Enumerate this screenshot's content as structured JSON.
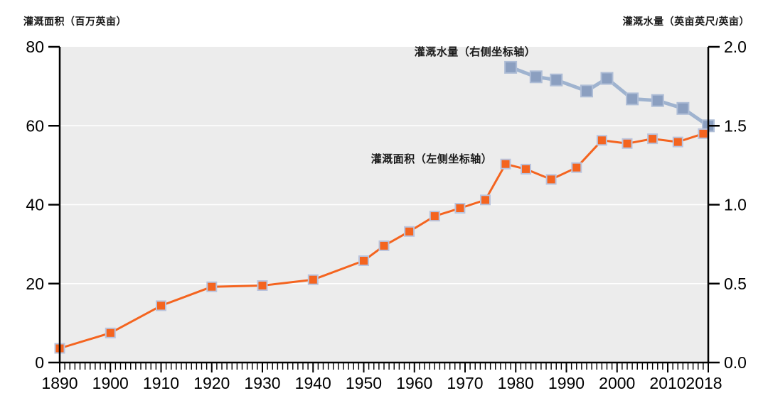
{
  "chart_data": {
    "type": "line",
    "axis_titles": {
      "left": "灌溉面积（百万英亩）",
      "right": "灌溉水量（英亩英尺/英亩）"
    },
    "colors": {
      "background": "#FFFFFF",
      "plot_background": "#ECECEC",
      "gridline": "#FFFFFF",
      "axis": "#000000"
    },
    "x_axis": {
      "min": 1890,
      "max": 2018,
      "minor_tick_step": 1,
      "major_tick_labels": [
        "1890",
        "1900",
        "1910",
        "1920",
        "1930",
        "1940",
        "1950",
        "1960",
        "1970",
        "1980",
        "1990",
        "2000",
        "2010",
        "2018"
      ]
    },
    "left_axis": {
      "min": 0,
      "max": 80,
      "ticks": [
        "0",
        "20",
        "40",
        "60",
        "80"
      ],
      "gridlines": [
        20,
        40,
        60
      ]
    },
    "right_axis": {
      "min": 0,
      "max": 2,
      "ticks": [
        "0.0",
        "0.5",
        "1.0",
        "1.5",
        "2.0"
      ],
      "gridlines": []
    },
    "series": [
      {
        "id": "water-application-rate",
        "label": "灌溉水量（右侧坐标轴）",
        "axis": "right",
        "line_color": "#9FB3CF",
        "marker_color": "#8B9FC0",
        "marker_edge": "#AEBDD6",
        "line_width": 5,
        "marker_size": 16,
        "x": [
          1979,
          1984,
          1988,
          1994,
          1998,
          2003,
          2008,
          2013,
          2018
        ],
        "y": [
          1.87,
          1.81,
          1.79,
          1.72,
          1.8,
          1.67,
          1.66,
          1.61,
          1.5
        ]
      },
      {
        "id": "irrigated-area",
        "label": "灌溉面积（左侧坐标轴）",
        "axis": "left",
        "line_color": "#F4641F",
        "marker_color": "#F4641F",
        "marker_edge": "#B9C3DD",
        "line_width": 3,
        "marker_size": 13,
        "x": [
          1890,
          1900,
          1910,
          1920,
          1930,
          1940,
          1950,
          1954,
          1959,
          1964,
          1969,
          1974,
          1978,
          1982,
          1987,
          1992,
          1997,
          2002,
          2007,
          2012,
          2017
        ],
        "y": [
          3.6,
          7.5,
          14.4,
          19.2,
          19.5,
          21.0,
          25.8,
          29.6,
          33.2,
          37.1,
          39.1,
          41.2,
          50.3,
          49.0,
          46.4,
          49.4,
          56.3,
          55.5,
          56.7,
          55.9,
          58.0
        ]
      }
    ]
  }
}
